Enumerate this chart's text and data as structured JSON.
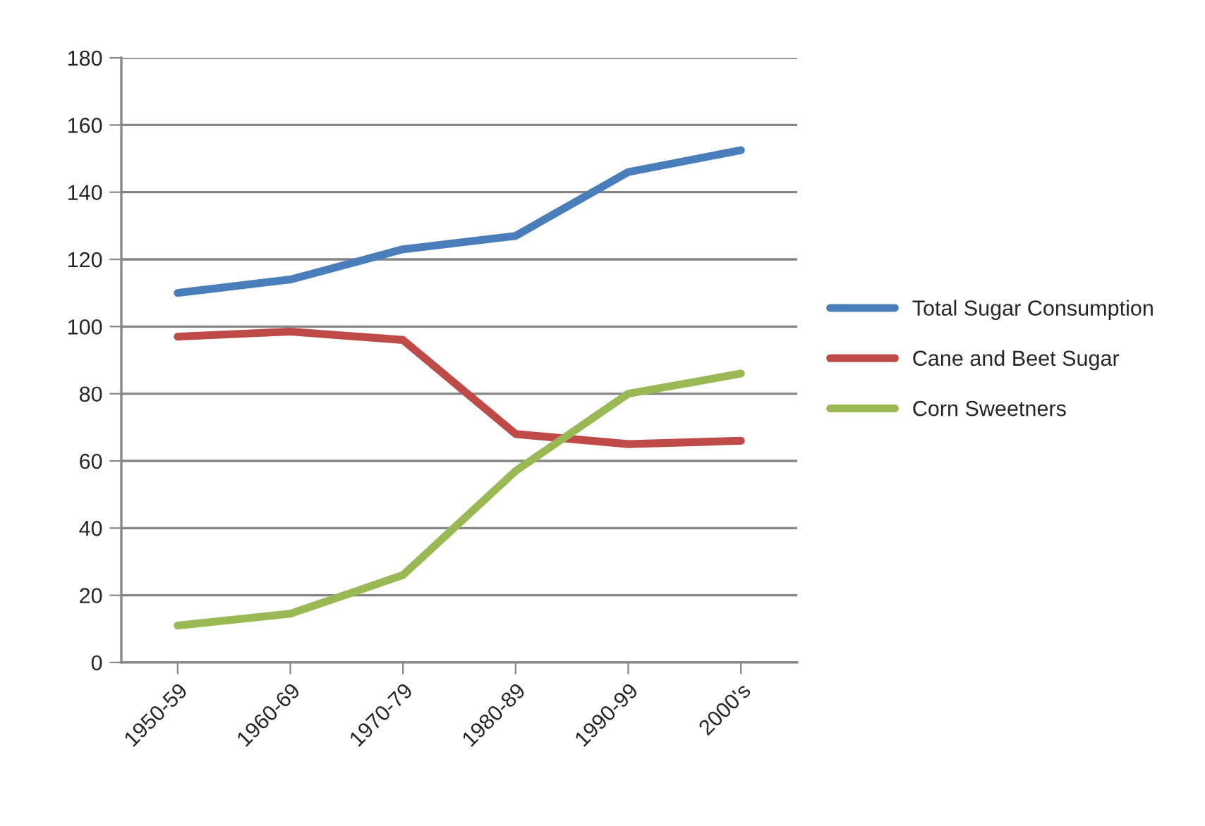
{
  "chart_data": {
    "type": "line",
    "categories": [
      "1950-59",
      "1960-69",
      "1970-79",
      "1980-89",
      "1990-99",
      "2000's"
    ],
    "series": [
      {
        "name": "Total Sugar Consumption",
        "color": "#4a7ebb",
        "values": [
          110,
          114,
          123,
          127,
          146,
          152.5
        ]
      },
      {
        "name": "Cane and Beet Sugar",
        "color": "#be4b48",
        "values": [
          97,
          98.5,
          96,
          68,
          65,
          66
        ]
      },
      {
        "name": "Corn Sweetners",
        "color": "#98b954",
        "values": [
          11,
          14.5,
          26,
          57,
          80,
          86
        ]
      }
    ],
    "ylim": [
      0,
      180
    ],
    "yticks": [
      0,
      20,
      40,
      60,
      80,
      100,
      120,
      140,
      160,
      180
    ],
    "grid": "y",
    "legend": "right",
    "marker": "none",
    "line_style": "solid"
  }
}
